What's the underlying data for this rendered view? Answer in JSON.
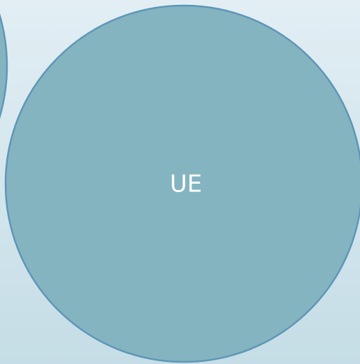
{
  "nodes": [
    {
      "label": "UE"
    }
  ]
}
